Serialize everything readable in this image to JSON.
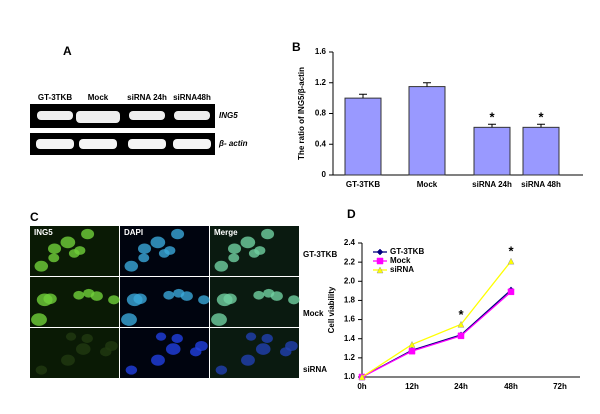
{
  "panel_a": {
    "label": "A",
    "lanes": [
      "GT-3TKB",
      "Mock",
      "siRNA 24h",
      "siRNA48h"
    ],
    "genes": [
      "ING5",
      "β- actin"
    ]
  },
  "panel_c": {
    "label": "C",
    "columns": [
      "ING5",
      "DAPI",
      "Merge"
    ],
    "rows": [
      "GT-3TKB",
      "Mock",
      "siRNA"
    ]
  },
  "chart_data": [
    {
      "type": "bar",
      "panel": "B",
      "ylabel": "The ratio of ING5/β-actin",
      "categories": [
        "GT-3TKB",
        "Mock",
        "siRNA 24h",
        "siRNA 48h"
      ],
      "values": [
        1.0,
        1.15,
        0.62,
        0.62
      ],
      "errors": [
        0.05,
        0.05,
        0.04,
        0.04
      ],
      "color": "#9999ff",
      "ylim": [
        0,
        1.6
      ],
      "yticks": [
        0,
        0.4,
        0.8,
        1.2,
        1.6
      ],
      "annotations": [
        {
          "text": "*",
          "at": "siRNA 24h"
        },
        {
          "text": "*",
          "at": "siRNA 48h"
        }
      ]
    },
    {
      "type": "line",
      "panel": "D",
      "ylabel": "Cell viability",
      "categories": [
        "0h",
        "12h",
        "24h",
        "48h",
        "72h"
      ],
      "series": [
        {
          "name": "GT-3TKB",
          "color": "#000080",
          "marker": "diamond",
          "values": [
            1.0,
            1.28,
            1.44,
            1.91,
            null
          ]
        },
        {
          "name": "Mock",
          "color": "#ff00ff",
          "marker": "square",
          "values": [
            1.0,
            1.27,
            1.43,
            1.89,
            null
          ]
        },
        {
          "name": "siRNA",
          "color": "#ffff00",
          "marker": "triangle",
          "values": [
            1.0,
            1.34,
            1.55,
            2.21,
            null
          ]
        }
      ],
      "ylim": [
        1.0,
        2.4
      ],
      "yticks": [
        {
          "value": 1.0,
          "label": "1.0"
        },
        1.2,
        1.4,
        1.6,
        1.8,
        {
          "value": 2.0,
          "label": "2.0"
        },
        2.2,
        2.4
      ],
      "legend": "upper left",
      "annotations": [
        {
          "text": "*",
          "at": "24h"
        },
        {
          "text": "*",
          "at": "48h"
        }
      ]
    }
  ]
}
